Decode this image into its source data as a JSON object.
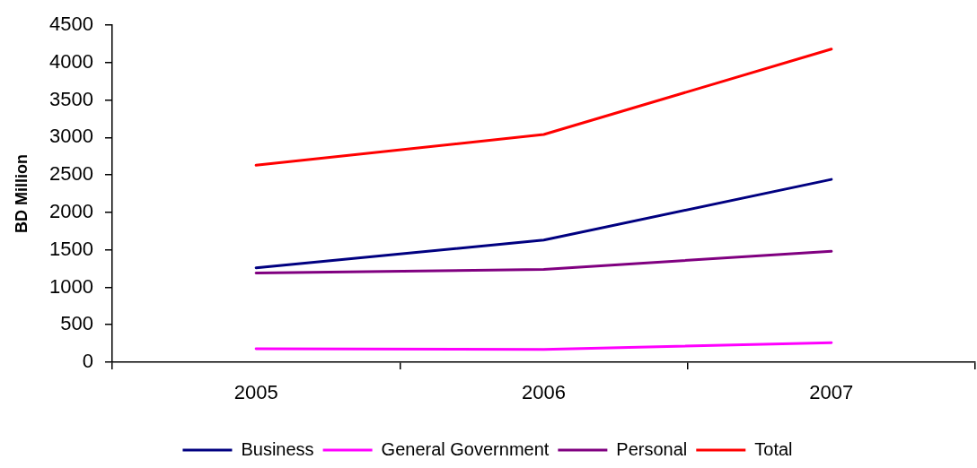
{
  "chart_data": {
    "type": "line",
    "ylabel": "BD Million",
    "categories": [
      "2005",
      "2006",
      "2007"
    ],
    "series": [
      {
        "name": "Business",
        "color": "#000080",
        "values": [
          1260,
          1630,
          2440
        ]
      },
      {
        "name": "General Government",
        "color": "#ff00ff",
        "values": [
          180,
          170,
          260
        ]
      },
      {
        "name": "Personal",
        "color": "#800080",
        "values": [
          1190,
          1240,
          1480
        ]
      },
      {
        "name": "Total",
        "color": "#ff0000",
        "values": [
          2630,
          3040,
          4180
        ]
      }
    ],
    "ylim": [
      0,
      4500
    ],
    "yticks": [
      0,
      500,
      1000,
      1500,
      2000,
      2500,
      3000,
      3500,
      4000,
      4500
    ],
    "legend": "bottom",
    "marker": "none",
    "line_style": "solid"
  }
}
